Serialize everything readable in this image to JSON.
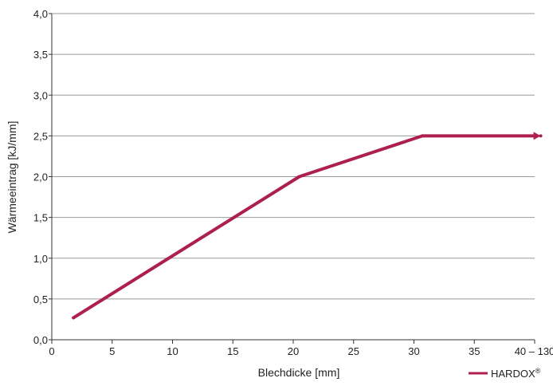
{
  "chart_data": {
    "type": "line",
    "xlabel": "Blechdicke [mm]",
    "ylabel": "Wärmeeintrag [kJ/mm]",
    "xlim": [
      0,
      40
    ],
    "ylim": [
      0,
      4
    ],
    "x_ticks": [
      {
        "value": 0,
        "label": "0"
      },
      {
        "value": 5,
        "label": "5"
      },
      {
        "value": 10,
        "label": "10"
      },
      {
        "value": 15,
        "label": "15"
      },
      {
        "value": 20,
        "label": "20"
      },
      {
        "value": 25,
        "label": "25"
      },
      {
        "value": 30,
        "label": "30"
      },
      {
        "value": 35,
        "label": "35"
      },
      {
        "value": 40,
        "label": "40 – 130"
      }
    ],
    "y_ticks": [
      {
        "value": 0,
        "label": "0,0"
      },
      {
        "value": 0.5,
        "label": "0,5"
      },
      {
        "value": 1,
        "label": "1,0"
      },
      {
        "value": 1.5,
        "label": "1,5"
      },
      {
        "value": 2,
        "label": "2,0"
      },
      {
        "value": 2.5,
        "label": "2,5"
      },
      {
        "value": 3,
        "label": "3,0"
      },
      {
        "value": 3.5,
        "label": "3,5"
      },
      {
        "value": 4,
        "label": "4,0"
      }
    ],
    "grid": "horizontal",
    "legend_position": "bottom-right",
    "series": [
      {
        "name": "HARDOX",
        "name_superscript": "®",
        "color": "#ad1f4e",
        "points": [
          {
            "x": 1.8,
            "y": 0.27
          },
          {
            "x": 20.5,
            "y": 2.0
          },
          {
            "x": 30.7,
            "y": 2.5
          },
          {
            "x": 40.5,
            "y": 2.5
          }
        ],
        "end_marker": "arrow"
      }
    ]
  }
}
